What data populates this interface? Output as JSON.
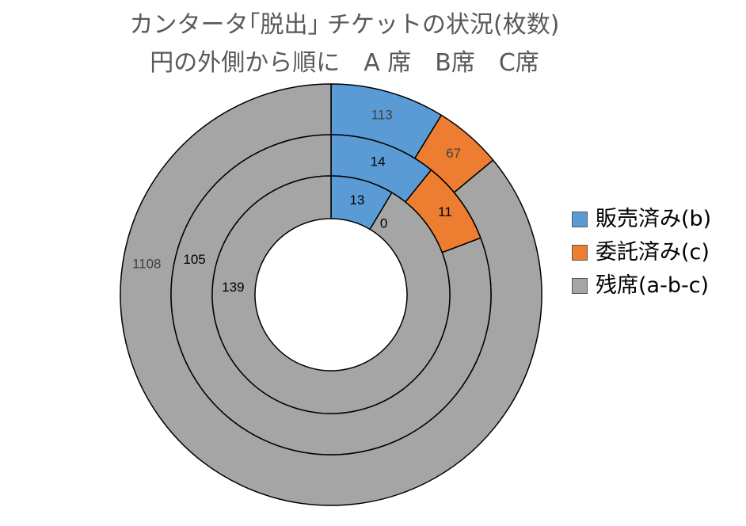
{
  "chart_data": {
    "type": "donut",
    "title": "カンタータ｢脱出｣ チケットの状況(枚数)",
    "subtitle": "円の外側から順に　A 席　B席　C席",
    "legend_position": "right",
    "categories": [
      "販売済み(b)",
      "委託済み(c)",
      "残席(a-b-c)"
    ],
    "colors": [
      "#5B9BD5",
      "#ED7D31",
      "#A5A5A5"
    ],
    "rings": [
      {
        "name": "A 席",
        "position": "outer",
        "values": [
          113,
          67,
          1108
        ],
        "label_color": "#404040"
      },
      {
        "name": "B席",
        "position": "middle",
        "values": [
          14,
          11,
          105
        ],
        "label_color": "#000000"
      },
      {
        "name": "C席",
        "position": "inner",
        "values": [
          13,
          0,
          139
        ],
        "label_color": "#000000"
      }
    ]
  }
}
